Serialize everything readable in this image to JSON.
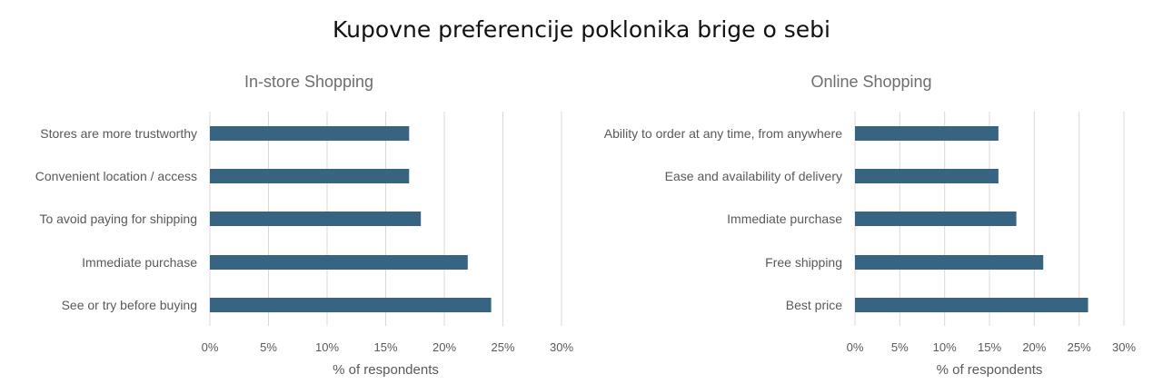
{
  "title": "Kupovne preferencije poklonika brige o sebi",
  "chart_data": [
    {
      "type": "bar",
      "orientation": "horizontal",
      "title": "In-store Shopping",
      "categories": [
        "Stores are more trustworthy",
        "Convenient location / access",
        "To avoid paying for shipping",
        "Immediate purchase",
        "See or try before buying"
      ],
      "values": [
        17,
        17,
        18,
        22,
        24
      ],
      "xlabel": "% of respondents",
      "ylabel": "",
      "xlim": [
        0,
        30
      ],
      "ticks": [
        "0%",
        "5%",
        "10%",
        "15%",
        "20%",
        "25%",
        "30%"
      ],
      "grid": true,
      "bar_color": "#376480"
    },
    {
      "type": "bar",
      "orientation": "horizontal",
      "title": "Online Shopping",
      "categories": [
        "Ability to order at any time, from anywhere",
        "Ease and availability of delivery",
        "Immediate purchase",
        "Free shipping",
        "Best price"
      ],
      "values": [
        16,
        16,
        18,
        21,
        26
      ],
      "xlabel": "% of respondents",
      "ylabel": "",
      "xlim": [
        0,
        30
      ],
      "ticks": [
        "0%",
        "5%",
        "10%",
        "15%",
        "20%",
        "25%",
        "30%"
      ],
      "grid": true,
      "bar_color": "#376480"
    }
  ]
}
